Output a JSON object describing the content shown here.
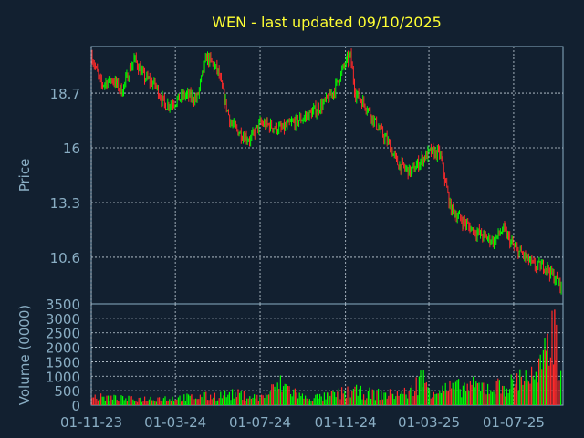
{
  "title": "WEN - last updated 09/10/2025",
  "colors": {
    "background": "#122030",
    "frame": "#8aaec4",
    "grid": "#c6d2dc",
    "title": "#ffff33",
    "axis_text": "#8aaec4",
    "up": "#00ff00",
    "down": "#ff2a2a"
  },
  "chart_data": [
    {
      "type": "line",
      "ylabel": "Price",
      "y_ticks": [
        "18.7",
        "16",
        "13.3",
        "10.6"
      ],
      "y_tick_values": [
        18.7,
        16,
        13.3,
        10.6
      ],
      "ylim": [
        8.3,
        21.0
      ],
      "x_ticks": [
        "01-11-23",
        "01-03-24",
        "01-07-24",
        "01-11-24",
        "01-03-25",
        "01-07-25"
      ],
      "x_range": [
        "2023-11-01",
        "2025-09-10"
      ],
      "grid": true,
      "series": [
        {
          "style": "candlestick (green up / red down)",
          "x": [
            "2023-11-01",
            "2023-11-15",
            "2023-12-01",
            "2023-12-15",
            "2024-01-02",
            "2024-01-16",
            "2024-02-01",
            "2024-02-15",
            "2024-03-01",
            "2024-03-15",
            "2024-04-01",
            "2024-04-15",
            "2024-05-01",
            "2024-05-10",
            "2024-05-20",
            "2024-06-03",
            "2024-06-17",
            "2024-07-01",
            "2024-07-15",
            "2024-08-01",
            "2024-08-15",
            "2024-09-03",
            "2024-09-16",
            "2024-10-01",
            "2024-10-15",
            "2024-11-01",
            "2024-11-08",
            "2024-11-15",
            "2024-12-02",
            "2024-12-16",
            "2025-01-02",
            "2025-01-15",
            "2025-02-03",
            "2025-02-18",
            "2025-03-03",
            "2025-03-17",
            "2025-04-01",
            "2025-04-15",
            "2025-05-01",
            "2025-05-15",
            "2025-06-02",
            "2025-06-16",
            "2025-07-01",
            "2025-07-15",
            "2025-08-01",
            "2025-08-15",
            "2025-09-02",
            "2025-09-10"
          ],
          "values": [
            20.6,
            19.1,
            19.4,
            18.8,
            20.4,
            19.5,
            19.1,
            18.1,
            18.3,
            18.6,
            18.4,
            20.5,
            19.8,
            18.5,
            17.2,
            16.7,
            16.4,
            17.2,
            17.1,
            16.9,
            17.2,
            17.5,
            17.8,
            18.2,
            18.8,
            20.2,
            20.5,
            18.7,
            18.0,
            17.1,
            16.2,
            15.2,
            14.8,
            15.4,
            15.8,
            15.7,
            13.0,
            12.5,
            12.0,
            11.7,
            11.4,
            12.0,
            11.1,
            10.7,
            10.1,
            10.2,
            9.4,
            9.1
          ]
        }
      ]
    },
    {
      "type": "bar",
      "ylabel": "Volume (0000)",
      "y_ticks": [
        "3500",
        "3000",
        "2500",
        "2000",
        "1500",
        "1000",
        "500",
        "0"
      ],
      "y_tick_values": [
        3500,
        3000,
        2500,
        2000,
        1500,
        1000,
        500,
        0
      ],
      "ylim": [
        0,
        3500
      ],
      "x_ticks": [
        "01-11-23",
        "01-03-24",
        "01-07-24",
        "01-11-24",
        "01-03-25",
        "01-07-25"
      ],
      "grid": true,
      "series": [
        {
          "style": "bars colored by candle direction",
          "x": [
            "2023-11-01",
            "2023-12-01",
            "2024-01-02",
            "2024-02-01",
            "2024-03-01",
            "2024-04-01",
            "2024-05-01",
            "2024-05-10",
            "2024-06-03",
            "2024-07-01",
            "2024-08-01",
            "2024-09-03",
            "2024-10-01",
            "2024-11-01",
            "2024-11-08",
            "2024-12-02",
            "2025-01-02",
            "2025-02-03",
            "2025-02-18",
            "2025-03-03",
            "2025-04-01",
            "2025-04-15",
            "2025-05-01",
            "2025-06-02",
            "2025-07-01",
            "2025-07-15",
            "2025-08-01",
            "2025-08-15",
            "2025-08-29",
            "2025-09-10"
          ],
          "values": [
            350,
            300,
            250,
            300,
            300,
            350,
            400,
            450,
            450,
            300,
            900,
            300,
            350,
            550,
            600,
            500,
            450,
            550,
            1200,
            650,
            700,
            750,
            800,
            750,
            900,
            1350,
            1100,
            1900,
            3300,
            600
          ]
        }
      ]
    }
  ]
}
